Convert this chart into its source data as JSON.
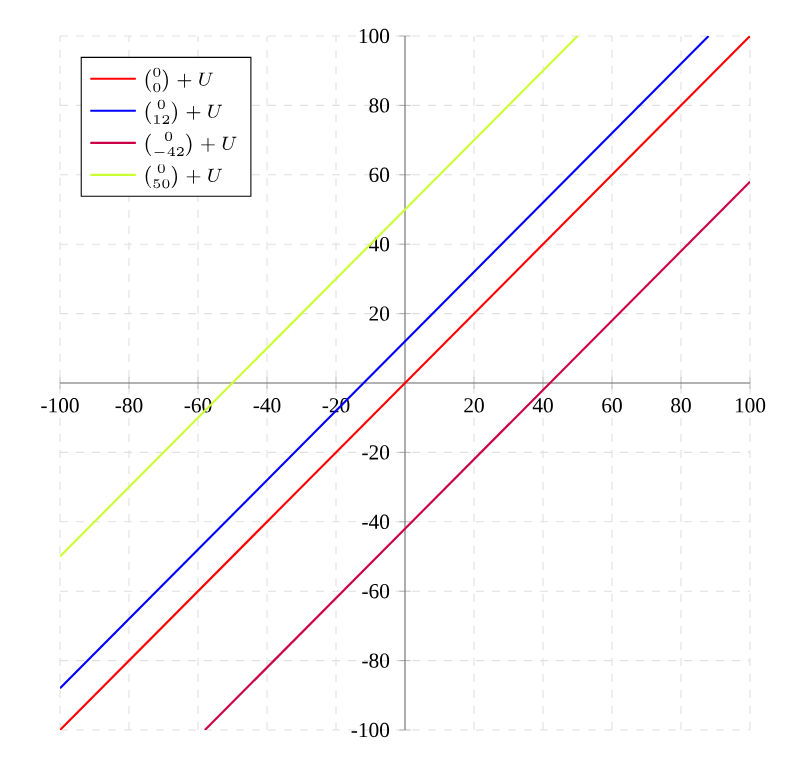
{
  "chart_data": {
    "type": "line",
    "series": [
      {
        "name": "\\binom{0}{0}+U",
        "color": "#ff0000",
        "x": [
          -100,
          100
        ],
        "values": [
          -100,
          100
        ]
      },
      {
        "name": "\\binom{0}{12}+U",
        "color": "#0000ff",
        "x": [
          -100,
          88
        ],
        "values": [
          -88,
          100
        ]
      },
      {
        "name": "\\binom{0}{-42}+U",
        "color": "#cc0044",
        "x": [
          -58,
          100
        ],
        "values": [
          -100,
          58
        ]
      },
      {
        "name": "\\binom{0}{50}+U",
        "color": "#ccff33",
        "x": [
          -100,
          50
        ],
        "values": [
          -50,
          100
        ]
      }
    ],
    "xlim": [
      -100,
      100
    ],
    "ylim": [
      -100,
      100
    ],
    "xticks": [
      -100,
      -80,
      -60,
      -40,
      -20,
      20,
      40,
      60,
      80,
      100
    ],
    "yticks": [
      -100,
      -80,
      -60,
      -40,
      -20,
      20,
      40,
      60,
      80,
      100
    ],
    "grid": true,
    "legend": "top left",
    "marker": "none",
    "line_style": "solid"
  }
}
